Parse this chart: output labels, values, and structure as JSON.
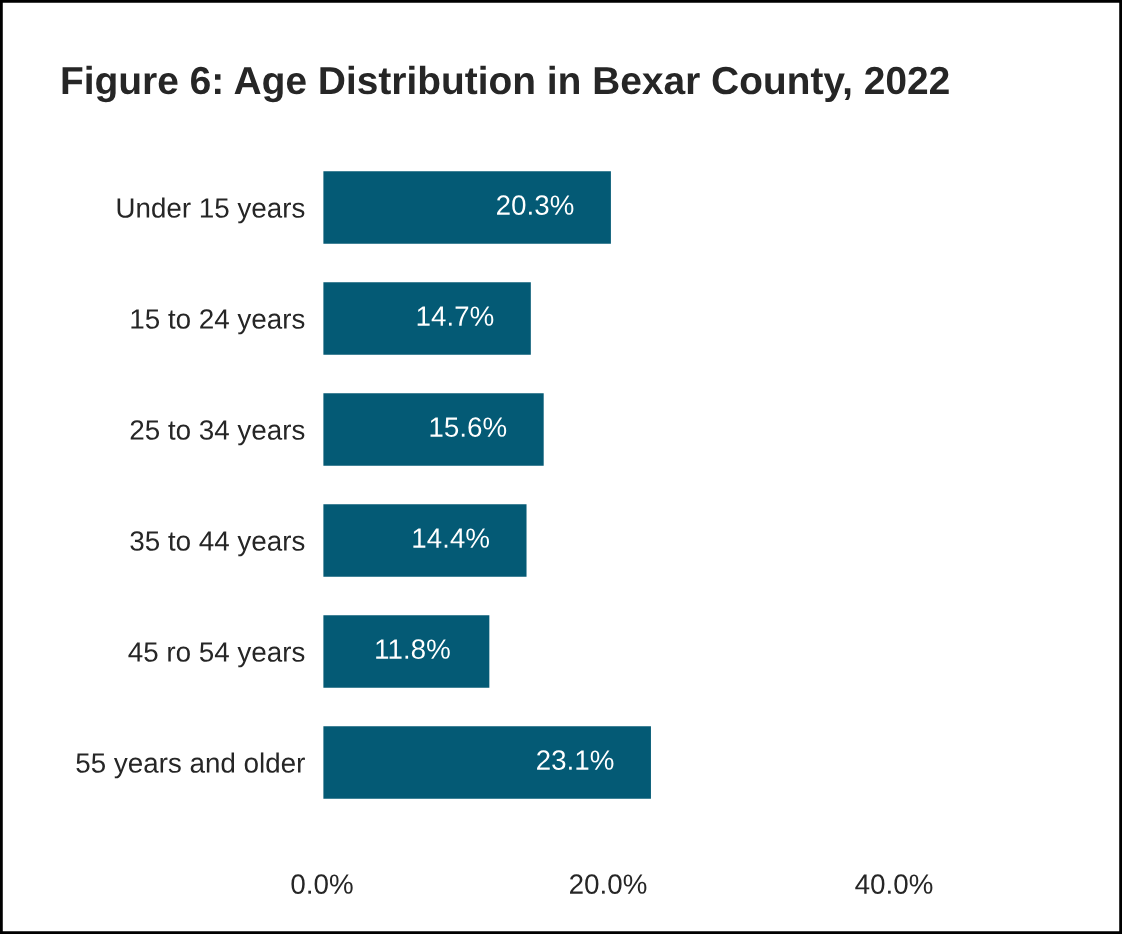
{
  "chart_data": {
    "type": "bar",
    "orientation": "horizontal",
    "title": "Figure 6: Age Distribution in Bexar County, 2022",
    "categories": [
      "Under 15 years",
      "15 to 24 years",
      "25 to 34 years",
      "35 to 44 years",
      "45 ro 54 years",
      "55 years and older"
    ],
    "values": [
      20.3,
      14.7,
      15.6,
      14.4,
      11.8,
      23.1
    ],
    "value_labels": [
      "20.3%",
      "14.7%",
      "15.6%",
      "14.4%",
      "11.8%",
      "23.1%"
    ],
    "color": "#045a75",
    "xlim": [
      0,
      40
    ],
    "xticks": [
      {
        "value": 0,
        "label": "0.0%"
      },
      {
        "value": 20,
        "label": "20.0%"
      },
      {
        "value": 40,
        "label": "40.0%"
      }
    ],
    "grid": false,
    "legend": false
  }
}
